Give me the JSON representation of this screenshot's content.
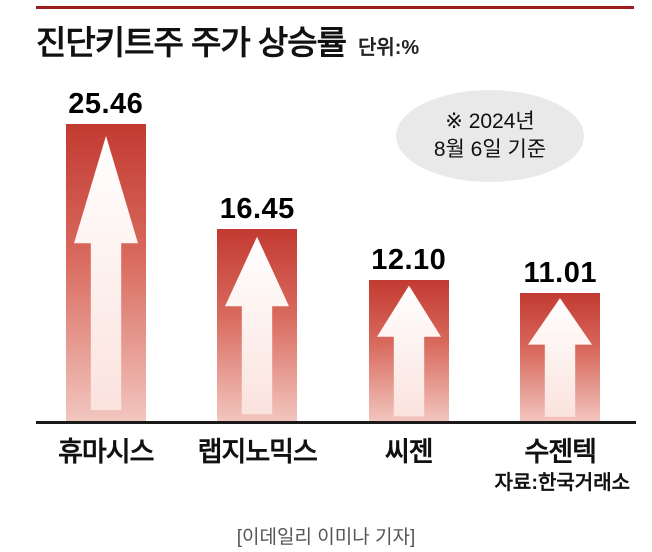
{
  "header": {
    "title": "진단키트주 주가 상승률",
    "unit": "단위:%"
  },
  "note": {
    "line1": "※ 2024년",
    "line2": "8월 6일 기준"
  },
  "source": "자료:한국거래소",
  "caption": "[이데일리 이미나 기자]",
  "chart_data": {
    "type": "bar",
    "title": "진단키트주 주가 상승률",
    "unit": "%",
    "categories": [
      "휴마시스",
      "랩지노믹스",
      "씨젠",
      "수젠텍"
    ],
    "values": [
      25.46,
      16.45,
      12.1,
      11.01
    ],
    "value_labels": [
      "25.46",
      "16.45",
      "12.10",
      "11.01"
    ],
    "ylim": [
      0,
      26
    ],
    "grid": false,
    "legend": false,
    "annotation": "※ 2024년 8월 6일 기준",
    "source": "자료:한국거래소",
    "bar_gradient_top": "#c23a31",
    "bar_gradient_bottom": "#f2c6bf",
    "arrow_color": "#ffffff",
    "accent_line_color": "#9b1c1c"
  }
}
